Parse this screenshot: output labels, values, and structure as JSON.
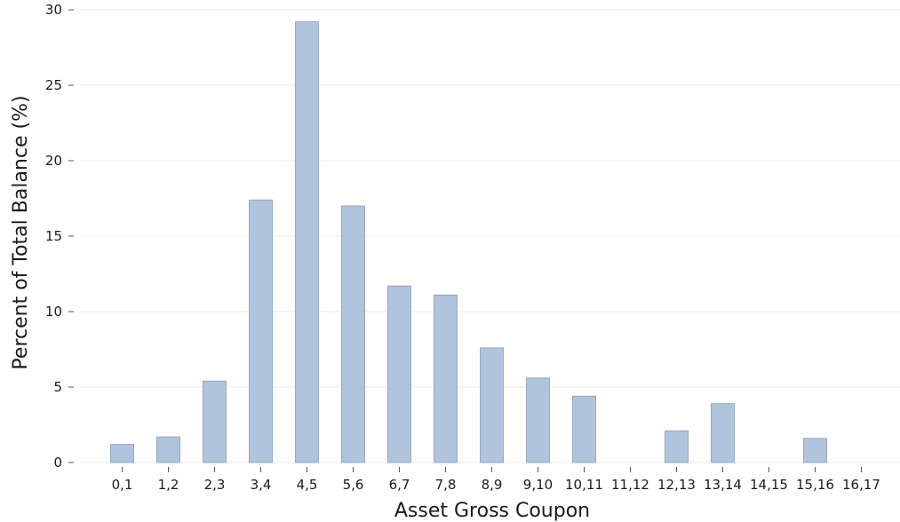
{
  "chart_data": {
    "type": "bar",
    "categories": [
      "0,1",
      "1,2",
      "2,3",
      "3,4",
      "4,5",
      "5,6",
      "6,7",
      "7,8",
      "8,9",
      "9,10",
      "10,11",
      "11,12",
      "12,13",
      "13,14",
      "14,15",
      "15,16",
      "16,17"
    ],
    "values": [
      1.2,
      1.7,
      5.4,
      17.4,
      29.2,
      17.0,
      11.7,
      11.1,
      7.6,
      5.6,
      4.4,
      0,
      2.1,
      3.9,
      0,
      1.6,
      0
    ],
    "xlabel": "Asset Gross Coupon",
    "ylabel": "Percent of Total Balance (%)",
    "ylim": [
      0,
      30
    ],
    "yticks": [
      0,
      5,
      10,
      15,
      20,
      25,
      30
    ],
    "grid": "horizontal",
    "bar_color": "#b0c4de"
  }
}
